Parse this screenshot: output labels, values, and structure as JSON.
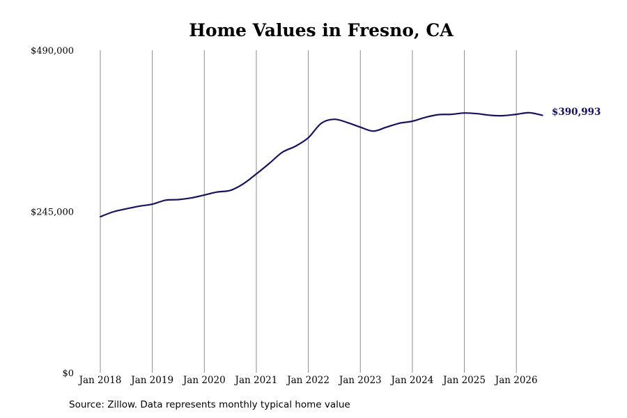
{
  "chart_data": {
    "type": "line",
    "title": "Home Values in Fresno, CA",
    "xlabel": "",
    "ylabel": "",
    "ylim": [
      0,
      490000
    ],
    "xlim": [
      "2018-01",
      "2026-08"
    ],
    "y_ticks": [
      {
        "value": 0,
        "label": "$0"
      },
      {
        "value": 245000,
        "label": "$245,000"
      },
      {
        "value": 490000,
        "label": "$490,000"
      }
    ],
    "x_ticks": [
      {
        "value": "2018-01",
        "label": "Jan 2018"
      },
      {
        "value": "2019-01",
        "label": "Jan 2019"
      },
      {
        "value": "2020-01",
        "label": "Jan 2020"
      },
      {
        "value": "2021-01",
        "label": "Jan 2021"
      },
      {
        "value": "2022-01",
        "label": "Jan 2022"
      },
      {
        "value": "2023-01",
        "label": "Jan 2023"
      },
      {
        "value": "2024-01",
        "label": "Jan 2024"
      },
      {
        "value": "2025-01",
        "label": "Jan 2025"
      },
      {
        "value": "2026-01",
        "label": "Jan 2026"
      }
    ],
    "grid": {
      "vertical": true,
      "horizontal": false
    },
    "legend": "none",
    "end_label": "$390,993",
    "color": "#14135e",
    "series": [
      {
        "points": [
          {
            "x": "2018-01",
            "y": 237000
          },
          {
            "x": "2018-04",
            "y": 244500
          },
          {
            "x": "2018-07",
            "y": 249000
          },
          {
            "x": "2018-10",
            "y": 253000
          },
          {
            "x": "2019-01",
            "y": 256000
          },
          {
            "x": "2019-04",
            "y": 262000
          },
          {
            "x": "2019-07",
            "y": 263000
          },
          {
            "x": "2019-10",
            "y": 265500
          },
          {
            "x": "2020-01",
            "y": 270000
          },
          {
            "x": "2020-04",
            "y": 274500
          },
          {
            "x": "2020-07",
            "y": 277000
          },
          {
            "x": "2020-10",
            "y": 287000
          },
          {
            "x": "2021-01",
            "y": 302000
          },
          {
            "x": "2021-04",
            "y": 318000
          },
          {
            "x": "2021-07",
            "y": 335000
          },
          {
            "x": "2021-10",
            "y": 344000
          },
          {
            "x": "2022-01",
            "y": 357000
          },
          {
            "x": "2022-04",
            "y": 379000
          },
          {
            "x": "2022-07",
            "y": 385000
          },
          {
            "x": "2022-10",
            "y": 380000
          },
          {
            "x": "2023-01",
            "y": 373000
          },
          {
            "x": "2023-04",
            "y": 367000
          },
          {
            "x": "2023-07",
            "y": 373000
          },
          {
            "x": "2023-10",
            "y": 379000
          },
          {
            "x": "2024-01",
            "y": 382000
          },
          {
            "x": "2024-04",
            "y": 388000
          },
          {
            "x": "2024-07",
            "y": 392000
          },
          {
            "x": "2024-10",
            "y": 392500
          },
          {
            "x": "2025-01",
            "y": 394500
          },
          {
            "x": "2025-04",
            "y": 393500
          },
          {
            "x": "2025-07",
            "y": 391000
          },
          {
            "x": "2025-10",
            "y": 390500
          },
          {
            "x": "2026-01",
            "y": 392500
          },
          {
            "x": "2026-04",
            "y": 395000
          },
          {
            "x": "2026-07",
            "y": 391000
          }
        ]
      }
    ]
  },
  "source_note": "Source: Zillow. Data represents monthly typical home value"
}
